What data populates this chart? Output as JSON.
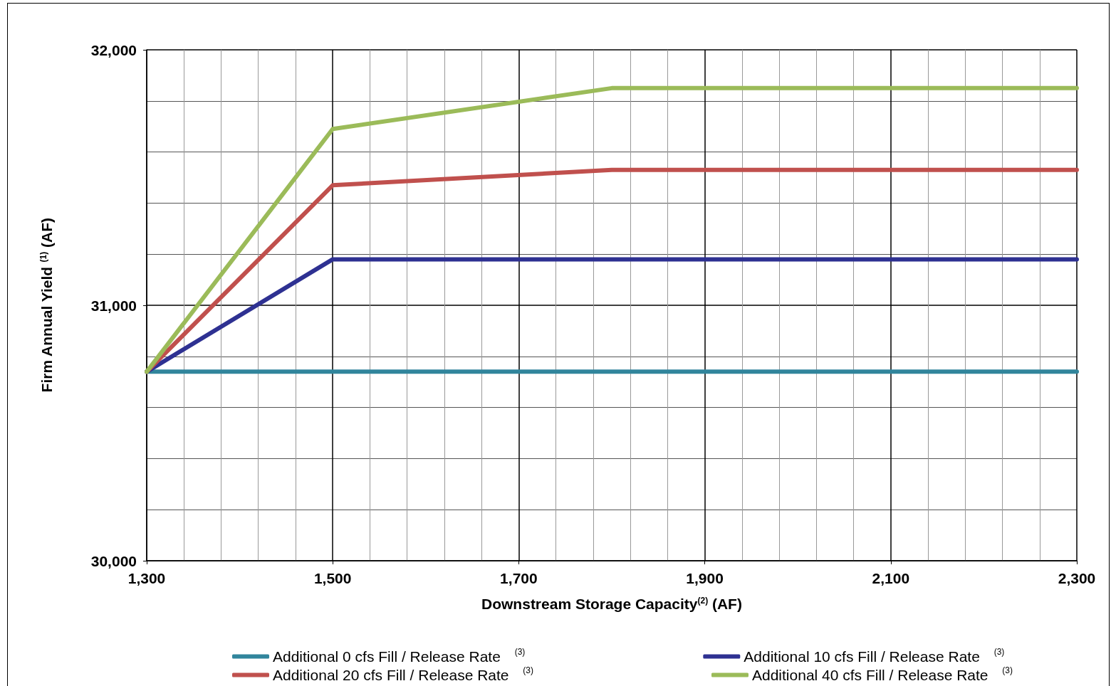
{
  "chart_data": {
    "type": "line",
    "xlabel": "Downstream Storage Capacity$^{(2)}$ (AF)",
    "ylabel": "Firm Annual Yield $^{(1)}$ (AF)",
    "x": [
      1300,
      1500,
      1800,
      2300
    ],
    "series": [
      {
        "name": "Additional 0 cfs Fill / Release Rate $^{(3)}$",
        "color": "#31859c",
        "values": [
          30740,
          30740,
          30740,
          30740
        ]
      },
      {
        "name": "Additional 10 cfs Fill / Release Rate $^{(3)}$",
        "color": "#2e3192",
        "values": [
          30740,
          31180,
          31180,
          31180
        ]
      },
      {
        "name": "Additional 20 cfs Fill / Release Rate $^{(3)}$",
        "color": "#c0504d",
        "values": [
          30740,
          31470,
          31530,
          31530
        ]
      },
      {
        "name": "Additional 40 cfs Fill / Release Rate $^{(3)}$",
        "color": "#9bbb59",
        "values": [
          30740,
          31690,
          31850,
          31850
        ]
      }
    ],
    "xlim": [
      1300,
      2300
    ],
    "xticks": [
      {
        "value": 1300,
        "label": "1,300"
      },
      {
        "value": 1500,
        "label": "1,500"
      },
      {
        "value": 1700,
        "label": "1,700"
      },
      {
        "value": 1900,
        "label": "1,900"
      },
      {
        "value": 2100,
        "label": "2,100"
      },
      {
        "value": 2300,
        "label": "2,300"
      }
    ],
    "ylim": [
      30000,
      32000
    ],
    "yticks": [
      {
        "value": 30000,
        "label": "30,000"
      },
      {
        "value": 31000,
        "label": "31,000"
      },
      {
        "value": 32000,
        "label": "32,000"
      }
    ],
    "grid": true,
    "legend": "bottom",
    "marker": "none",
    "line_style": "solid"
  }
}
